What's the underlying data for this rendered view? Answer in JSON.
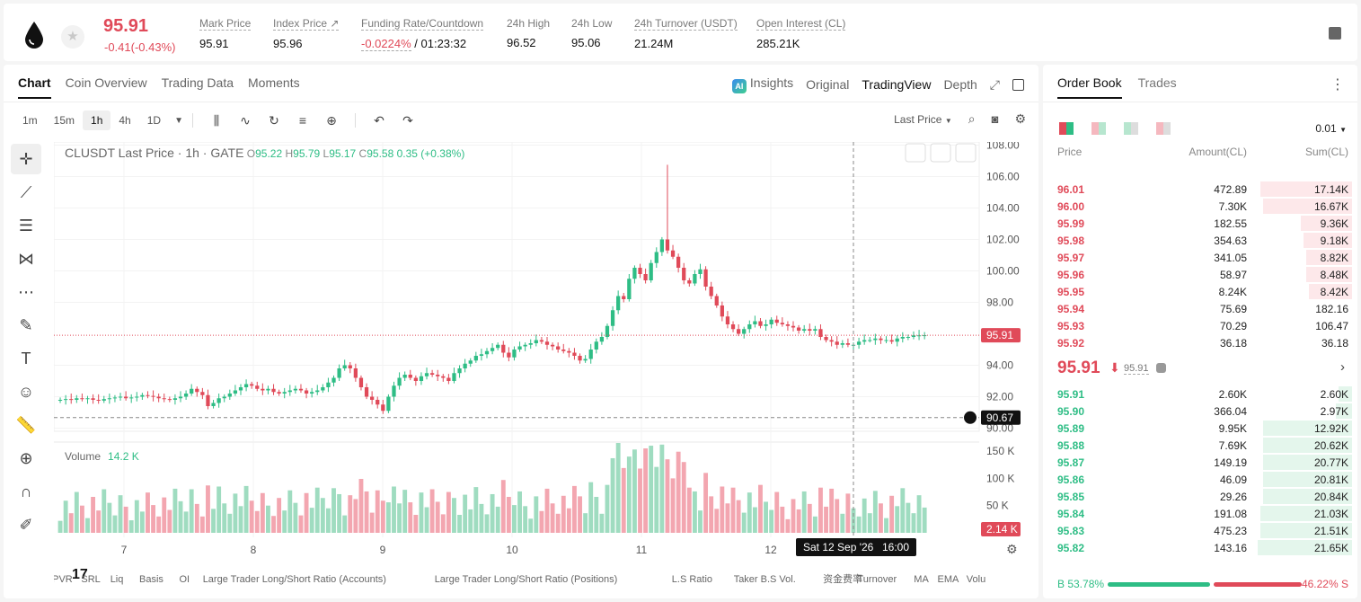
{
  "header": {
    "last_price": "95.91",
    "change": "-0.41(-0.43%)",
    "stats": [
      {
        "label": "Mark Price",
        "value": "95.91"
      },
      {
        "label": "Index Price ↗",
        "value": "95.96"
      },
      {
        "label": "Funding Rate/Countdown",
        "value_red": "-0.0224%",
        "value": " / 01:23:32"
      },
      {
        "label": "24h High",
        "value": "96.52"
      },
      {
        "label": "24h Low",
        "value": "95.06"
      },
      {
        "label": "24h Turnover (USDT)",
        "value": "21.24M"
      },
      {
        "label": "Open Interest (CL)",
        "value": "285.21K"
      }
    ]
  },
  "chart_tabs": [
    "Chart",
    "Coin Overview",
    "Trading Data",
    "Moments"
  ],
  "chart_views": {
    "insights": "Insights",
    "original": "Original",
    "tradingview": "TradingView",
    "depth": "Depth"
  },
  "intervals": [
    "1m",
    "15m",
    "1h",
    "4h",
    "1D"
  ],
  "price_type": "Last Price",
  "legend": {
    "symbol": "CLUSDT Last Price · 1h · GATE",
    "o": "95.22",
    "h": "95.79",
    "l": "95.17",
    "c": "95.58",
    "chg": "0.35 (+0.38%)"
  },
  "volume_label": "Volume",
  "volume_value": "14.2 K",
  "price_tag": "95.91",
  "cross_tag": "90.67",
  "crosshair_date": "Sat 12 Sep '26",
  "crosshair_time": "16:00",
  "indicators": [
    "LPVR",
    "SRL",
    "Liq",
    "Basis",
    "OI",
    "Large Trader Long/Short Ratio (Accounts)",
    "Large Trader Long/Short Ratio (Positions)",
    "L.S Ratio",
    "Taker B.S Vol.",
    "资金费率",
    "Turnover",
    "MA",
    "EMA",
    "Volu"
  ],
  "chart_data": {
    "type": "candlestick",
    "y_ticks": [
      "108.00",
      "106.00",
      "104.00",
      "102.00",
      "100.00",
      "98.00",
      "94.00",
      "92.00",
      "90.00"
    ],
    "vol_ticks": [
      "150 K",
      "100 K",
      "50 K"
    ],
    "vol_tag": "2.14 K",
    "x_ticks": [
      "7",
      "8",
      "9",
      "10",
      "11",
      "12"
    ],
    "ylim": [
      89.8,
      108.2
    ],
    "vol_max": 165,
    "closes": [
      91.8,
      91.85,
      91.8,
      91.9,
      91.85,
      91.9,
      91.8,
      91.75,
      91.85,
      91.9,
      91.95,
      92.0,
      91.9,
      91.95,
      92.0,
      92.1,
      92.05,
      92.0,
      91.9,
      91.85,
      91.8,
      91.9,
      92.0,
      92.2,
      92.5,
      92.3,
      92.1,
      91.4,
      91.6,
      91.9,
      92.0,
      92.2,
      92.4,
      92.6,
      92.8,
      92.7,
      92.5,
      92.4,
      92.5,
      92.3,
      92.2,
      92.3,
      92.4,
      92.5,
      92.4,
      92.2,
      92.3,
      92.4,
      92.6,
      92.9,
      93.2,
      93.8,
      94.0,
      93.8,
      93.2,
      92.6,
      92.0,
      91.8,
      91.5,
      91.1,
      92.0,
      92.7,
      93.2,
      93.4,
      93.2,
      93.0,
      93.3,
      93.5,
      93.4,
      93.3,
      93.2,
      93.0,
      93.5,
      93.8,
      94.1,
      94.3,
      94.6,
      94.7,
      94.9,
      95.1,
      95.3,
      94.8,
      94.5,
      95.0,
      95.2,
      95.3,
      95.4,
      95.6,
      95.5,
      95.3,
      95.2,
      95.0,
      94.9,
      94.8,
      94.6,
      94.3,
      94.4,
      95.0,
      95.5,
      95.8,
      96.5,
      97.5,
      98.4,
      98.2,
      99.5,
      100.2,
      99.8,
      99.4,
      100.5,
      101.2,
      102.0,
      101.3,
      100.9,
      100.2,
      99.4,
      99.2,
      99.8,
      100.1,
      99.0,
      98.4,
      97.8,
      97.1,
      96.6,
      96.3,
      96.0,
      96.3,
      96.6,
      96.8,
      96.5,
      96.6,
      96.9,
      96.7,
      96.6,
      96.5,
      96.4,
      96.2,
      96.3,
      96.2,
      96.3,
      95.8,
      95.6,
      95.5,
      95.3,
      95.4,
      95.3,
      95.3,
      95.5,
      95.6,
      95.6,
      95.7,
      95.6,
      95.6,
      95.5,
      95.7,
      95.8,
      95.8,
      95.9,
      95.9,
      95.91
    ]
  },
  "orderbook": {
    "tabs": [
      "Order Book",
      "Trades"
    ],
    "precision": "0.01",
    "headers": {
      "price": "Price",
      "amount": "Amount(CL)",
      "sum": "Sum(CL)"
    },
    "asks": [
      {
        "price": "96.01",
        "amount": "472.89",
        "sum": "17.14K",
        "depth": 0.34
      },
      {
        "price": "96.00",
        "amount": "7.30K",
        "sum": "16.67K",
        "depth": 0.33
      },
      {
        "price": "95.99",
        "amount": "182.55",
        "sum": "9.36K",
        "depth": 0.19
      },
      {
        "price": "95.98",
        "amount": "354.63",
        "sum": "9.18K",
        "depth": 0.18
      },
      {
        "price": "95.97",
        "amount": "341.05",
        "sum": "8.82K",
        "depth": 0.17
      },
      {
        "price": "95.96",
        "amount": "58.97",
        "sum": "8.48K",
        "depth": 0.17
      },
      {
        "price": "95.95",
        "amount": "8.24K",
        "sum": "8.42K",
        "depth": 0.16
      },
      {
        "price": "95.94",
        "amount": "75.69",
        "sum": "182.16",
        "depth": 0.0
      },
      {
        "price": "95.93",
        "amount": "70.29",
        "sum": "106.47",
        "depth": 0.0
      },
      {
        "price": "95.92",
        "amount": "36.18",
        "sum": "36.18",
        "depth": 0.0
      }
    ],
    "mid": {
      "price": "95.91",
      "mark": "95.91"
    },
    "bids": [
      {
        "price": "95.91",
        "amount": "2.60K",
        "sum": "2.60K",
        "depth": 0.05
      },
      {
        "price": "95.90",
        "amount": "366.04",
        "sum": "2.97K",
        "depth": 0.06
      },
      {
        "price": "95.89",
        "amount": "9.95K",
        "sum": "12.92K",
        "depth": 0.33
      },
      {
        "price": "95.88",
        "amount": "7.69K",
        "sum": "20.62K",
        "depth": 0.33
      },
      {
        "price": "95.87",
        "amount": "149.19",
        "sum": "20.77K",
        "depth": 0.33
      },
      {
        "price": "95.86",
        "amount": "46.09",
        "sum": "20.81K",
        "depth": 0.33
      },
      {
        "price": "95.85",
        "amount": "29.26",
        "sum": "20.84K",
        "depth": 0.33
      },
      {
        "price": "95.84",
        "amount": "191.08",
        "sum": "21.03K",
        "depth": 0.34
      },
      {
        "price": "95.83",
        "amount": "475.23",
        "sum": "21.51K",
        "depth": 0.34
      },
      {
        "price": "95.82",
        "amount": "143.16",
        "sum": "21.65K",
        "depth": 0.35
      }
    ],
    "buy_ratio": "B 53.78%",
    "sell_ratio": "46.22% S"
  },
  "colors": {
    "up": "#2ebd85",
    "down": "#e04a59"
  }
}
